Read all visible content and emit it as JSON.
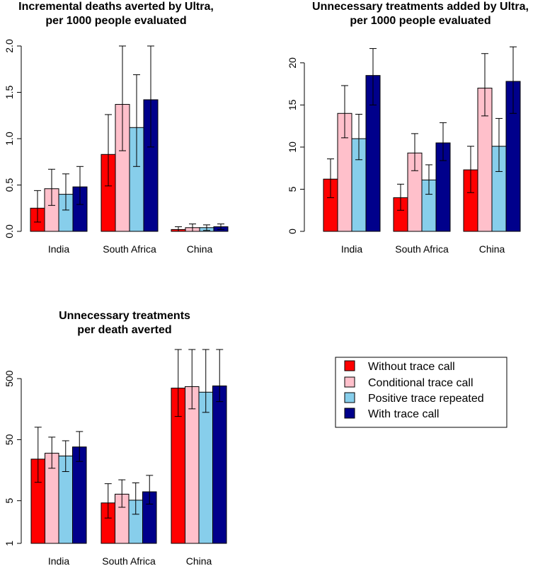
{
  "chart_data": [
    {
      "type": "bar",
      "title": [
        "Incremental deaths averted by Ultra,",
        "per 1000 people evaluated"
      ],
      "categories": [
        "India",
        "South Africa",
        "China"
      ],
      "y_scale": "linear",
      "ylim": [
        0,
        2.0
      ],
      "yticks": [
        0.0,
        0.5,
        1.0,
        1.5,
        2.0
      ],
      "ytick_labels": [
        "0.0",
        "0.5",
        "1.0",
        "1.5",
        "2.0"
      ],
      "series": [
        {
          "name": "Without trace call",
          "values": [
            0.25,
            0.83,
            0.02
          ],
          "ci_low": [
            0.1,
            0.49,
            0.0
          ],
          "ci_high": [
            0.44,
            1.26,
            0.05
          ]
        },
        {
          "name": "Conditional trace call",
          "values": [
            0.46,
            1.37,
            0.04
          ],
          "ci_low": [
            0.28,
            0.87,
            0.0
          ],
          "ci_high": [
            0.67,
            2.02,
            0.08
          ]
        },
        {
          "name": "Positive trace repeated",
          "values": [
            0.4,
            1.12,
            0.04
          ],
          "ci_low": [
            0.23,
            0.7,
            0.01
          ],
          "ci_high": [
            0.62,
            1.69,
            0.07
          ]
        },
        {
          "name": "With trace call",
          "values": [
            0.48,
            1.42,
            0.05
          ],
          "ci_low": [
            0.29,
            0.91,
            0.02
          ],
          "ci_high": [
            0.7,
            2.09,
            0.08
          ]
        }
      ]
    },
    {
      "type": "bar",
      "title": [
        "Unnecessary treatments added by Ultra,",
        "per 1000 people evaluated"
      ],
      "categories": [
        "India",
        "South Africa",
        "China"
      ],
      "y_scale": "linear",
      "ylim": [
        0,
        22
      ],
      "yticks": [
        0,
        5,
        10,
        15,
        20
      ],
      "ytick_labels": [
        "0",
        "5",
        "10",
        "15",
        "20"
      ],
      "series": [
        {
          "name": "Without trace call",
          "values": [
            6.2,
            4.0,
            7.3
          ],
          "ci_low": [
            4.0,
            2.5,
            4.6
          ],
          "ci_high": [
            8.6,
            5.6,
            10.1
          ]
        },
        {
          "name": "Conditional trace call",
          "values": [
            14.0,
            9.3,
            17.0
          ],
          "ci_low": [
            11.1,
            7.2,
            13.7
          ],
          "ci_high": [
            17.3,
            11.6,
            21.1
          ]
        },
        {
          "name": "Positive trace repeated",
          "values": [
            11.0,
            6.1,
            10.1
          ],
          "ci_low": [
            8.5,
            4.4,
            7.1
          ],
          "ci_high": [
            13.9,
            7.9,
            13.4
          ]
        },
        {
          "name": "With trace call",
          "values": [
            18.5,
            10.5,
            17.8
          ],
          "ci_low": [
            15.0,
            8.4,
            14.0
          ],
          "ci_high": [
            21.7,
            12.9,
            21.9
          ]
        }
      ]
    },
    {
      "type": "bar",
      "title": [
        "Unnecessary treatments",
        "per death averted"
      ],
      "categories": [
        "India",
        "South Africa",
        "China"
      ],
      "y_scale": "log",
      "ylim": [
        1,
        1500
      ],
      "yticks": [
        1,
        5,
        50,
        500
      ],
      "ytick_labels": [
        "1",
        "5",
        "50",
        "500"
      ],
      "series": [
        {
          "name": "Without trace call",
          "values": [
            24,
            4.6,
            350
          ],
          "ci_low": [
            10,
            2.6,
            120
          ],
          "ci_high": [
            80,
            9.5,
            1500
          ]
        },
        {
          "name": "Conditional trace call",
          "values": [
            30,
            6.4,
            370
          ],
          "ci_low": [
            17,
            3.9,
            160
          ],
          "ci_high": [
            55,
            11.0,
            1500
          ]
        },
        {
          "name": "Positive trace repeated",
          "values": [
            27,
            5.1,
            300
          ],
          "ci_low": [
            15,
            3.0,
            140
          ],
          "ci_high": [
            48,
            9.8,
            1500
          ]
        },
        {
          "name": "With trace call",
          "values": [
            38,
            7.0,
            380
          ],
          "ci_low": [
            22,
            4.4,
            210
          ],
          "ci_high": [
            68,
            13.0,
            1500
          ]
        }
      ]
    }
  ],
  "legend": {
    "position": "right",
    "entries": [
      {
        "label": "Without trace call",
        "color": "#ff0000"
      },
      {
        "label": "Conditional trace call",
        "color": "#ffc0cb"
      },
      {
        "label": "Positive trace repeated",
        "color": "#87ceeb"
      },
      {
        "label": "With trace call",
        "color": "#00008b"
      }
    ]
  }
}
